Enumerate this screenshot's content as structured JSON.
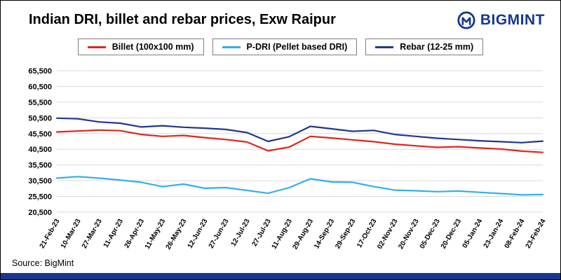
{
  "header": {
    "title": "Indian DRI, billet and rebar prices, Exw Raipur",
    "logo_text": "BIGMINT"
  },
  "footer": {
    "source": "Source: BigMint"
  },
  "chart_data": {
    "type": "line",
    "title": "Indian DRI, billet and rebar prices, Exw Raipur",
    "categories": [
      "21-Feb-23",
      "10-Mar-23",
      "27-Mar-23",
      "11-Apr-23",
      "26-Apr-23",
      "11-May-23",
      "26-May-23",
      "12-Jun-23",
      "27-Jun-23",
      "12-Jul-23",
      "27-Jul-23",
      "11-Aug-23",
      "29-Aug-23",
      "14-Sep-23",
      "29-Sep-23",
      "17-Oct-23",
      "02-Nov-23",
      "20-Nov-23",
      "05-Dec-23",
      "20-Dec-23",
      "05-Jan-24",
      "23-Jan-24",
      "08-Feb-24",
      "23-Feb-24"
    ],
    "series": [
      {
        "name": "Billet (100x100 mm)",
        "color": "#e0251b",
        "values": [
          46000,
          46300,
          46600,
          46400,
          45200,
          44600,
          44900,
          44200,
          43600,
          42800,
          40000,
          41200,
          44600,
          44100,
          43500,
          42900,
          42100,
          41600,
          41100,
          41300,
          40900,
          40600,
          39900,
          39500
        ]
      },
      {
        "name": "P-DRI (Pellet based DRI)",
        "color": "#2fb1e8",
        "values": [
          31300,
          31800,
          31300,
          30700,
          30000,
          28600,
          29400,
          28100,
          28300,
          27400,
          26500,
          28300,
          31100,
          30100,
          30000,
          28600,
          27500,
          27300,
          27000,
          27200,
          26800,
          26400,
          26000,
          26100
        ]
      },
      {
        "name": "Rebar (12-25 mm)",
        "color": "#20388c",
        "values": [
          50400,
          50200,
          49200,
          48800,
          47600,
          48000,
          47500,
          47200,
          46800,
          45800,
          43000,
          44500,
          47800,
          47000,
          46200,
          46500,
          45200,
          44600,
          44000,
          43600,
          43200,
          42900,
          42600,
          43100
        ]
      }
    ],
    "ylim": [
      20500,
      65500
    ],
    "ytick_step": 5000,
    "yticks": [
      "20,500",
      "25,500",
      "30,500",
      "35,500",
      "40,500",
      "45,500",
      "50,500",
      "55,500",
      "60,500",
      "65,500"
    ],
    "grid": true,
    "legend_position": "top",
    "xlabel": "",
    "ylabel": "",
    "source": "Source: BigMint"
  }
}
